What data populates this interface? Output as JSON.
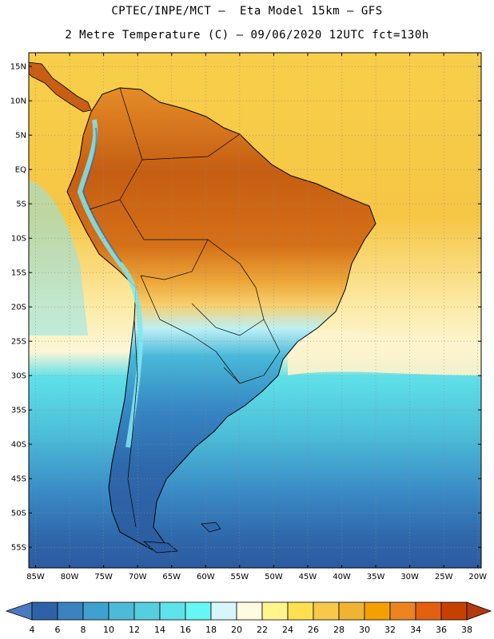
{
  "title": {
    "line1": "CPTEC/INPE/MCT –  Eta Model 15km – GFS",
    "line2": "2 Metre Temperature (C) – 09/06/2020 12UTC fct=130h"
  },
  "map_data": {
    "lon_range": [
      -86,
      -19.5
    ],
    "lat_range": [
      -58,
      17
    ],
    "lat_ticks": [
      "15N",
      "10N",
      "5N",
      "EQ",
      "5S",
      "10S",
      "15S",
      "20S",
      "25S",
      "30S",
      "35S",
      "40S",
      "45S",
      "50S",
      "55S"
    ],
    "lon_ticks": [
      "85W",
      "80W",
      "75W",
      "70W",
      "65W",
      "60W",
      "55W",
      "50W",
      "45W",
      "40W",
      "35W",
      "30W",
      "25W",
      "20W"
    ]
  },
  "colorbar": {
    "labels": [
      "4",
      "6",
      "8",
      "10",
      "12",
      "14",
      "16",
      "18",
      "20",
      "22",
      "24",
      "26",
      "28",
      "30",
      "32",
      "34",
      "36",
      "38"
    ],
    "colors": [
      "#4a7bc0",
      "#2e62a8",
      "#3a82c0",
      "#40a0d0",
      "#4dbbd8",
      "#55cfe0",
      "#5fe3ea",
      "#66f6f6",
      "#d6f6fa",
      "#fffbe3",
      "#fff58c",
      "#ffe050",
      "#f7c84a",
      "#f0b432",
      "#f4a000",
      "#ec8420",
      "#e26010",
      "#c84000",
      "#b23a10"
    ]
  },
  "colors": {
    "ocean_tropical": "#f7cf4a",
    "ocean_subtropical": "#fbf2bf",
    "ocean_cool": "#4fd0de",
    "ocean_cold": "#3f8fca",
    "ocean_polar": "#2e62a8",
    "land_hot": "#c25e10",
    "land_warm": "#e48a24",
    "land_mild": "#efb53a",
    "land_cool": "#46b6d8",
    "land_cold": "#2e66aa",
    "andes": "#7fe8f0",
    "border": "#000000"
  }
}
